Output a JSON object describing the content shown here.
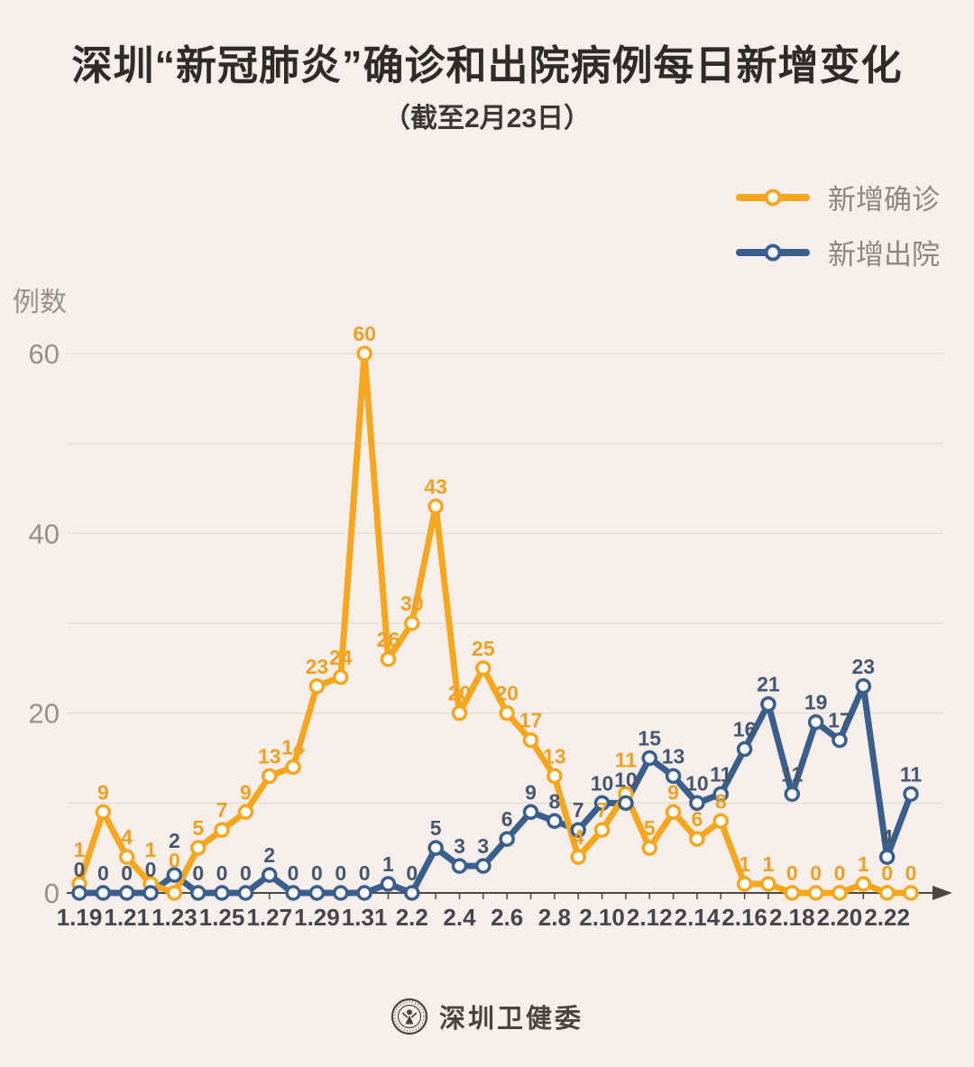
{
  "header": {
    "title": "深圳“新冠肺炎”确诊和出院病例每日新增变化",
    "subtitle": "（截至2月23日）"
  },
  "legend": [
    {
      "label": "新增确诊",
      "color": "#F7A71E"
    },
    {
      "label": "新增出院",
      "color": "#3A5F8D"
    }
  ],
  "footer": {
    "source": "深圳卫健委"
  },
  "chart_data": {
    "type": "line",
    "title": "深圳“新冠肺炎”确诊和出院病例每日新增变化",
    "subtitle": "（截至2月23日）",
    "ylabel": "例数",
    "xlabel": "",
    "ylim": [
      0,
      60
    ],
    "yticks": [
      0,
      20,
      40,
      60
    ],
    "grid": "horizontal every 10, labels only at 0/20/40/60",
    "legend_position": "top-right",
    "categories": [
      "1.19",
      "1.20",
      "1.21",
      "1.22",
      "1.23",
      "1.24",
      "1.25",
      "1.26",
      "1.27",
      "1.28",
      "1.29",
      "1.30",
      "1.31",
      "2.1",
      "2.2",
      "2.3",
      "2.4",
      "2.5",
      "2.6",
      "2.7",
      "2.8",
      "2.9",
      "2.10",
      "2.11",
      "2.12",
      "2.13",
      "2.14",
      "2.15",
      "2.16",
      "2.17",
      "2.18",
      "2.19",
      "2.20",
      "2.21",
      "2.22",
      "2.23"
    ],
    "xtick_label_every": 2,
    "series": [
      {
        "name": "新增确诊",
        "color": "#F7A71E",
        "label_color": "#F0A124",
        "values": [
          1,
          9,
          4,
          1,
          0,
          5,
          7,
          9,
          13,
          14,
          23,
          24,
          60,
          26,
          30,
          43,
          20,
          25,
          20,
          17,
          13,
          4,
          7,
          11,
          5,
          9,
          6,
          8,
          1,
          1,
          0,
          0,
          0,
          1,
          0,
          0
        ]
      },
      {
        "name": "新增出院",
        "color": "#3A5F8D",
        "label_color": "#45586D",
        "values": [
          0,
          0,
          0,
          0,
          2,
          0,
          0,
          0,
          2,
          0,
          0,
          0,
          0,
          1,
          0,
          5,
          3,
          3,
          6,
          9,
          8,
          7,
          10,
          10,
          15,
          13,
          10,
          11,
          16,
          21,
          11,
          19,
          17,
          23,
          4,
          11
        ]
      }
    ],
    "colors": {
      "background": "#F6EEEA",
      "grid": "#E6DDD7",
      "axis": "#4D4843",
      "x_tick_text": "#45454D",
      "y_tick_text": "#9B9089",
      "marker_fill": "#FFFFFF"
    }
  }
}
